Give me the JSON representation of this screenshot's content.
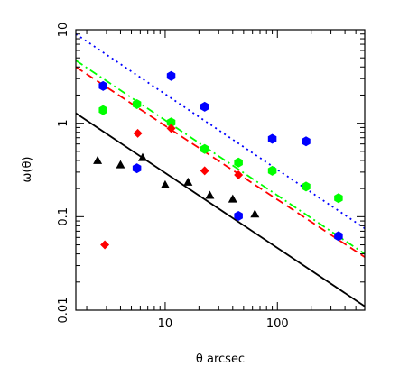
{
  "chart_data": {
    "type": "scatter",
    "xlabel": "θ arcsec",
    "ylabel": "ω(θ)",
    "xscale": "log",
    "yscale": "log",
    "xlim": [
      1.6,
      600
    ],
    "ylim": [
      0.01,
      10
    ],
    "x_ticks": [
      {
        "value": 10,
        "label": "10"
      },
      {
        "value": 100,
        "label": "100"
      }
    ],
    "y_ticks": [
      {
        "value": 0.01,
        "label": "0.01"
      },
      {
        "value": 0.1,
        "label": "0.1"
      },
      {
        "value": 1,
        "label": "1"
      },
      {
        "value": 10,
        "label": "10"
      }
    ],
    "grid": false,
    "legend": "none",
    "series": [
      {
        "marker": "hexagon",
        "color": "#0000ff",
        "points": [
          {
            "x": 2.8,
            "y": 2.5
          },
          {
            "x": 5.6,
            "y": 0.33
          },
          {
            "x": 11.3,
            "y": 3.2
          },
          {
            "x": 22.5,
            "y": 1.5
          },
          {
            "x": 45,
            "y": 0.102
          },
          {
            "x": 90,
            "y": 0.68
          },
          {
            "x": 180,
            "y": 0.64
          },
          {
            "x": 350,
            "y": 0.062
          }
        ]
      },
      {
        "marker": "hexagon",
        "color": "#00ff00",
        "points": [
          {
            "x": 2.8,
            "y": 1.38
          },
          {
            "x": 5.6,
            "y": 1.6
          },
          {
            "x": 11.3,
            "y": 1.02
          },
          {
            "x": 22.5,
            "y": 0.53
          },
          {
            "x": 45,
            "y": 0.38
          },
          {
            "x": 90,
            "y": 0.31
          },
          {
            "x": 180,
            "y": 0.21
          },
          {
            "x": 350,
            "y": 0.158
          }
        ]
      },
      {
        "marker": "diamond",
        "color": "#ff0000",
        "points": [
          {
            "x": 2.9,
            "y": 0.05
          },
          {
            "x": 5.7,
            "y": 0.78
          },
          {
            "x": 11.3,
            "y": 0.88
          },
          {
            "x": 22.5,
            "y": 0.31
          },
          {
            "x": 45,
            "y": 0.28
          }
        ]
      },
      {
        "marker": "triangle",
        "color": "#000000",
        "points": [
          {
            "x": 2.5,
            "y": 0.4
          },
          {
            "x": 4.0,
            "y": 0.36
          },
          {
            "x": 6.3,
            "y": 0.43
          },
          {
            "x": 10,
            "y": 0.22
          },
          {
            "x": 16,
            "y": 0.235
          },
          {
            "x": 25,
            "y": 0.17
          },
          {
            "x": 40,
            "y": 0.155
          },
          {
            "x": 63,
            "y": 0.107
          }
        ]
      }
    ],
    "lines": [
      {
        "style": "dotted",
        "color": "#0000ff",
        "from": {
          "x": 1.6,
          "y": 9.0
        },
        "to": {
          "x": 600,
          "y": 0.075
        }
      },
      {
        "style": "dashdot",
        "color": "#00ff00",
        "from": {
          "x": 1.6,
          "y": 4.7
        },
        "to": {
          "x": 600,
          "y": 0.04
        }
      },
      {
        "style": "dashed",
        "color": "#ff0000",
        "from": {
          "x": 1.6,
          "y": 4.0
        },
        "to": {
          "x": 600,
          "y": 0.037
        }
      },
      {
        "style": "solid",
        "color": "#000000",
        "from": {
          "x": 1.6,
          "y": 1.28
        },
        "to": {
          "x": 600,
          "y": 0.011
        }
      }
    ]
  }
}
